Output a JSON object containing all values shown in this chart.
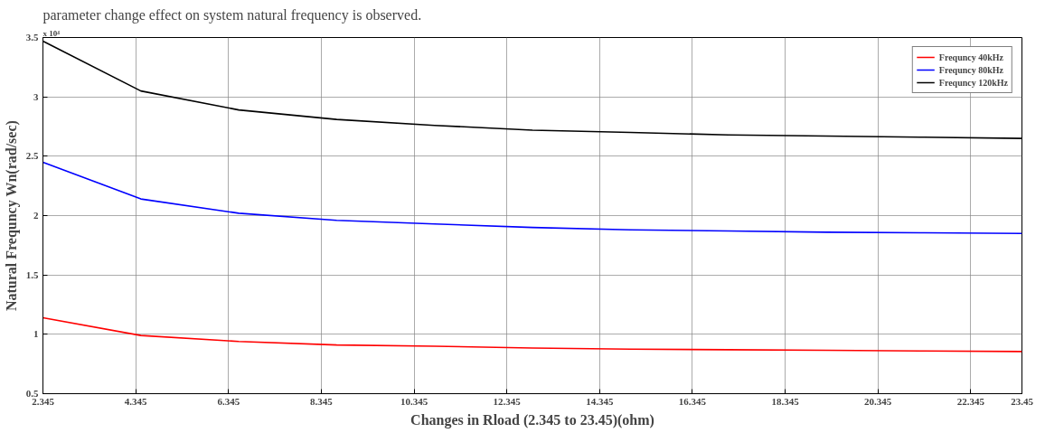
{
  "chart_data": {
    "type": "line",
    "xlabel": "Changes in Rload (2.345 to 23.45)(ohm)",
    "ylabel": "Natural Frequncy Wn(rad/sec)",
    "annotations": [
      "parameter change effect on system natural frequency is observed.",
      "x 10⁴"
    ],
    "x": [
      2.345,
      4.4555,
      6.566,
      8.6765,
      10.787,
      12.8975,
      15.008,
      17.1185,
      19.229,
      21.3395,
      23.45
    ],
    "series": [
      {
        "name": "Frequncy 40kHz",
        "color": "#ff0000",
        "values": [
          1.14,
          0.99,
          0.94,
          0.91,
          0.9,
          0.885,
          0.875,
          0.87,
          0.865,
          0.86,
          0.855
        ]
      },
      {
        "name": "Frequncy 80kHz",
        "color": "#0000ff",
        "values": [
          2.45,
          2.14,
          2.02,
          1.96,
          1.93,
          1.9,
          1.88,
          1.87,
          1.86,
          1.855,
          1.85
        ]
      },
      {
        "name": "Frequncy 120kHz",
        "color": "#000000",
        "values": [
          3.47,
          3.05,
          2.89,
          2.81,
          2.76,
          2.72,
          2.7,
          2.68,
          2.67,
          2.66,
          2.65
        ]
      }
    ],
    "xlim": [
      2.345,
      23.45
    ],
    "xticks": [
      2.345,
      4.345,
      6.345,
      8.345,
      10.345,
      12.345,
      14.345,
      16.345,
      18.345,
      20.345,
      22.345,
      23.45
    ],
    "ylim": [
      0.5,
      3.5
    ],
    "yticks": [
      0.5,
      1,
      1.5,
      2,
      2.5,
      3,
      3.5
    ],
    "grid": true,
    "legend": "top right",
    "marker": "none",
    "line_style": "solid"
  }
}
